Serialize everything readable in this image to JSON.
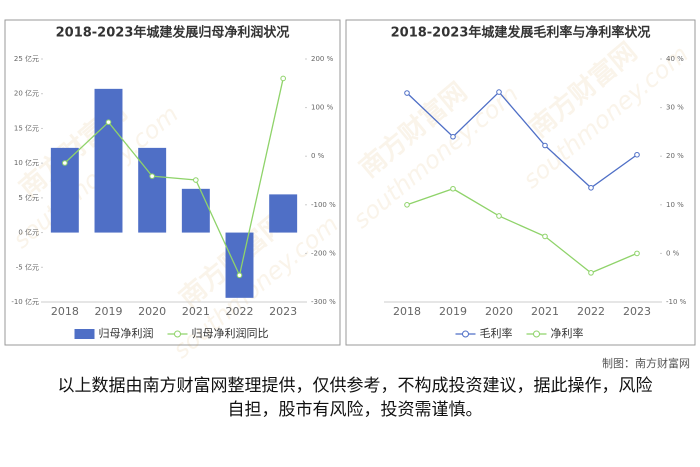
{
  "chart_data": [
    {
      "type": "bar",
      "title": "2018-2023年城建发展归母净利润状况",
      "categories": [
        "2018",
        "2019",
        "2020",
        "2021",
        "2022",
        "2023"
      ],
      "series": [
        {
          "name": "归母净利润",
          "type": "bar",
          "color": "#4f6fc6",
          "axis": "y",
          "values": [
            12.2,
            20.7,
            12.2,
            6.3,
            -9.4,
            5.5
          ]
        },
        {
          "name": "归母净利润同比",
          "type": "line",
          "color": "#8fd36a",
          "axis": "y2",
          "values": [
            -14,
            70,
            -41,
            -49,
            -245,
            160
          ]
        }
      ],
      "ylim": [
        -10,
        25
      ],
      "yticks": [
        {
          "value": -10,
          "label": "-10 亿元"
        },
        {
          "value": -5,
          "label": "-5 亿元"
        },
        {
          "value": 0,
          "label": "0 亿元"
        },
        {
          "value": 5,
          "label": "5 亿元"
        },
        {
          "value": 10,
          "label": "10 亿元"
        },
        {
          "value": 15,
          "label": "15 亿元"
        },
        {
          "value": 20,
          "label": "20 亿元"
        },
        {
          "value": 25,
          "label": "25 亿元"
        }
      ],
      "y2lim": [
        -300,
        200
      ],
      "y2ticks": [
        {
          "value": -300,
          "label": "-300 %"
        },
        {
          "value": -200,
          "label": "-200 %"
        },
        {
          "value": -100,
          "label": "-100 %"
        },
        {
          "value": 0,
          "label": "0 %"
        },
        {
          "value": 100,
          "label": "100 %"
        },
        {
          "value": 200,
          "label": "200 %"
        }
      ],
      "grid": false
    },
    {
      "type": "line",
      "title": "2018-2023年城建发展毛利率与净利率状况",
      "categories": [
        "2018",
        "2019",
        "2020",
        "2021",
        "2022",
        "2023"
      ],
      "series": [
        {
          "name": "毛利率",
          "type": "line",
          "color": "#4f6fc6",
          "axis": "y",
          "values": [
            33,
            24,
            33.2,
            22.2,
            13.5,
            20.3
          ]
        },
        {
          "name": "净利率",
          "type": "line",
          "color": "#8fd36a",
          "axis": "y",
          "values": [
            10,
            13.3,
            7.7,
            3.5,
            -4,
            0
          ]
        }
      ],
      "ylim": [
        -10,
        40
      ],
      "yticks": [
        {
          "value": -10,
          "label": "-10 %"
        },
        {
          "value": 0,
          "label": "0 %"
        },
        {
          "value": 10,
          "label": "10 %"
        },
        {
          "value": 20,
          "label": "20 %"
        },
        {
          "value": 30,
          "label": "30 %"
        },
        {
          "value": 40,
          "label": "40 %"
        }
      ],
      "y_axis_position": "right",
      "grid": false
    }
  ],
  "watermark": [
    "南方财富网",
    "southmoney.com"
  ],
  "credit": "制图：南方财富网",
  "disclaimer": "以上数据由南方财富网整理提供，仅供参考，不构成投资建议，据此操作，风险自担，股市有风险，投资需谨慎。"
}
